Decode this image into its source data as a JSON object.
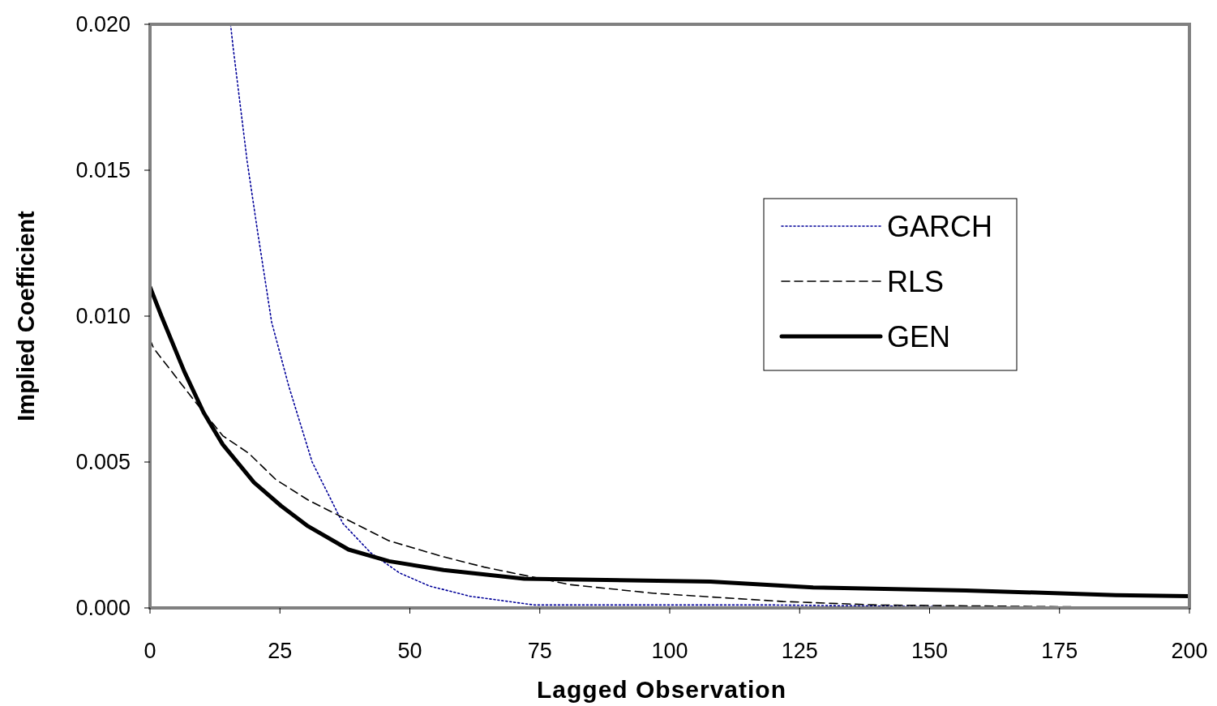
{
  "chart_data": {
    "type": "line",
    "xlabel": "Lagged Observation",
    "ylabel": "Implied Coefficient",
    "xlim": [
      0,
      200
    ],
    "xticks": [
      0,
      25,
      50,
      75,
      100,
      125,
      150,
      175,
      200
    ],
    "ylim": [
      0,
      0.02
    ],
    "yticks": [
      {
        "value": 0,
        "label": "0.000"
      },
      {
        "value": 0.005,
        "label": "0.005"
      },
      {
        "value": 0.01,
        "label": "0.010"
      },
      {
        "value": 0.015,
        "label": "0.015"
      },
      {
        "value": 0.02,
        "label": "0.020"
      }
    ],
    "grid": false,
    "legend": "right",
    "series": [
      {
        "name": "GARCH",
        "color": "#000099",
        "line_style": "dotted",
        "x": [
          15.5,
          16,
          18.7,
          20.7,
          23.4,
          26.7,
          31.2,
          37.1,
          42.4,
          48,
          53.8,
          61.6,
          74,
          87,
          120,
          175
        ],
        "values": [
          0.02,
          0.0192,
          0.0153,
          0.0129,
          0.0098,
          0.0076,
          0.005,
          0.0029,
          0.0019,
          0.0012,
          0.00075,
          0.0004,
          0.0001,
          0.0001,
          0.0001,
          0
        ]
      },
      {
        "name": "RLS",
        "color": "#000000",
        "line_style": "dashed",
        "x": [
          0,
          0.7,
          8.1,
          14,
          19,
          24.2,
          30.4,
          38.2,
          46,
          56.5,
          64.3,
          80.7,
          97,
          121.8,
          139.8,
          200
        ],
        "values": [
          0.0092,
          0.0089,
          0.0072,
          0.0059,
          0.0053,
          0.0044,
          0.0037,
          0.003,
          0.0023,
          0.00175,
          0.0014,
          0.0008,
          0.0005,
          0.00022,
          0.0001,
          0
        ]
      },
      {
        "name": "GEN",
        "color": "#000000",
        "line_style": "solid",
        "x": [
          0,
          2.2,
          6.6,
          10.3,
          14,
          20,
          25.2,
          30.4,
          38.2,
          46,
          56.5,
          72,
          107.8,
          127.6,
          157,
          185.8,
          200
        ],
        "values": [
          0.011,
          0.01,
          0.0081,
          0.0067,
          0.0056,
          0.0043,
          0.0035,
          0.0028,
          0.002,
          0.0016,
          0.0013,
          0.001,
          0.0009,
          0.0007,
          0.0006,
          0.00044,
          0.0004
        ]
      }
    ]
  }
}
